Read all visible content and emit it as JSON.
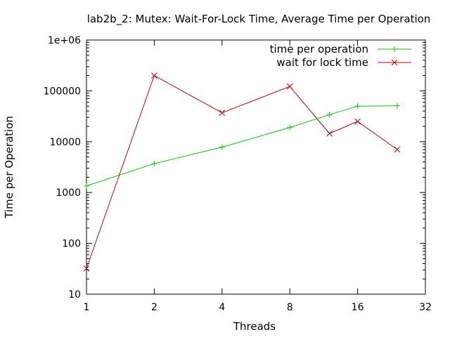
{
  "chart_data": {
    "type": "line",
    "title": "lab2b_2: Mutex: Wait-For-Lock Time, Average Time per Operation",
    "xlabel": "Threads",
    "ylabel": "Time per Operation",
    "xscale": "log2",
    "yscale": "log10",
    "xlim": [
      1,
      32
    ],
    "ylim": [
      10,
      1000000
    ],
    "xticks": [
      1,
      2,
      4,
      8,
      16,
      32
    ],
    "xtick_labels": [
      "1",
      "2",
      "4",
      "8",
      "16",
      "32"
    ],
    "yticks": [
      10,
      100,
      1000,
      10000,
      100000,
      1000000
    ],
    "ytick_labels": [
      "10",
      "100",
      "1000",
      "10000",
      "100000",
      "1e+06"
    ],
    "grid": false,
    "legend_position": "top-right",
    "series": [
      {
        "name": "time per operation",
        "color": "#00cc00",
        "marker": "plus",
        "x": [
          1,
          2,
          4,
          8,
          12,
          16,
          24
        ],
        "y": [
          1350,
          3700,
          7800,
          19000,
          34000,
          50000,
          51000
        ]
      },
      {
        "name": "wait for lock time",
        "color": "#cc0000",
        "marker": "cross",
        "x": [
          1,
          2,
          4,
          8,
          12,
          16,
          24
        ],
        "y": [
          32,
          200000,
          37000,
          122000,
          14500,
          25000,
          7000
        ]
      }
    ]
  }
}
